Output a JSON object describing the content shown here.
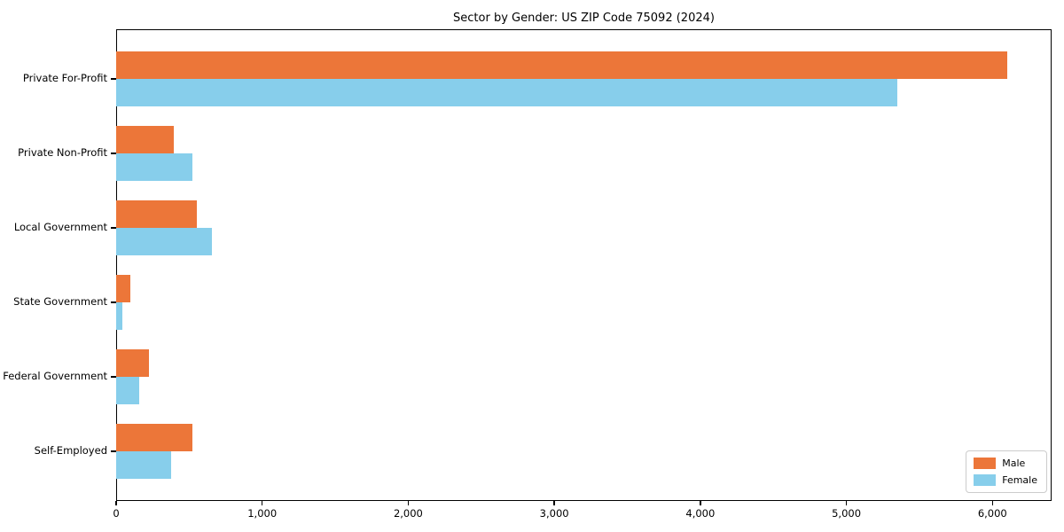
{
  "chart_data": {
    "type": "bar",
    "orientation": "horizontal",
    "title": "Sector by Gender: US ZIP Code 75092 (2024)",
    "categories": [
      "Private For-Profit",
      "Private Non-Profit",
      "Local Government",
      "State Government",
      "Federal Government",
      "Self-Employed"
    ],
    "series": [
      {
        "name": "Male",
        "color": "#ec7639",
        "values": [
          6100,
          395,
          555,
          95,
          225,
          520
        ]
      },
      {
        "name": "Female",
        "color": "#87ceeb",
        "values": [
          5350,
          520,
          655,
          45,
          160,
          375
        ]
      }
    ],
    "xlabel": "",
    "ylabel": "",
    "xlim": [
      0,
      6405
    ],
    "x_ticks": [
      0,
      1000,
      2000,
      3000,
      4000,
      5000,
      6000
    ],
    "x_tick_labels": [
      "0",
      "1,000",
      "2,000",
      "3,000",
      "4,000",
      "5,000",
      "6,000"
    ],
    "grid": false,
    "legend": {
      "position": "lower right"
    },
    "colors": {
      "axis": "#000000",
      "legend_border": "#cccccc",
      "background": "#ffffff"
    }
  }
}
